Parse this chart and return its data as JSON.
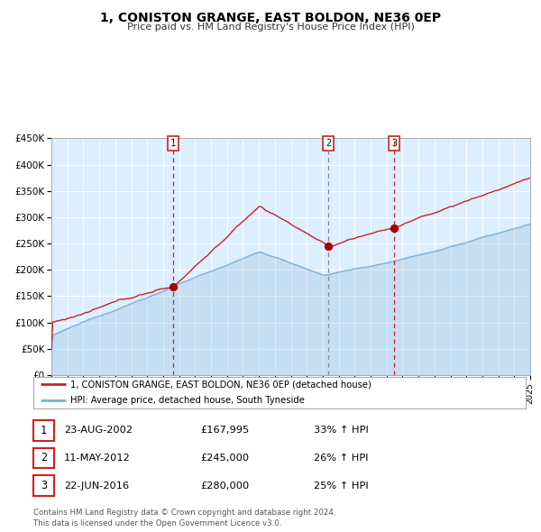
{
  "title": "1, CONISTON GRANGE, EAST BOLDON, NE36 0EP",
  "subtitle": "Price paid vs. HM Land Registry's House Price Index (HPI)",
  "ylim": [
    0,
    450000
  ],
  "yticks": [
    0,
    50000,
    100000,
    150000,
    200000,
    250000,
    300000,
    350000,
    400000,
    450000
  ],
  "ytick_labels": [
    "£0",
    "£50K",
    "£100K",
    "£150K",
    "£200K",
    "£250K",
    "£300K",
    "£350K",
    "£400K",
    "£450K"
  ],
  "year_start": 1995,
  "year_end": 2025,
  "hpi_color": "#7ab0d4",
  "price_color": "#cc2222",
  "bg_color": "#ddeeff",
  "sale1_date": 2002.644,
  "sale1_price": 167995,
  "sale2_date": 2012.36,
  "sale2_price": 245000,
  "sale3_date": 2016.472,
  "sale3_price": 280000,
  "legend_label1": "1, CONISTON GRANGE, EAST BOLDON, NE36 0EP (detached house)",
  "legend_label2": "HPI: Average price, detached house, South Tyneside",
  "transaction1": {
    "num": "1",
    "date": "23-AUG-2002",
    "price": "£167,995",
    "hpi": "33% ↑ HPI"
  },
  "transaction2": {
    "num": "2",
    "date": "11-MAY-2012",
    "price": "£245,000",
    "hpi": "26% ↑ HPI"
  },
  "transaction3": {
    "num": "3",
    "date": "22-JUN-2016",
    "price": "£280,000",
    "hpi": "25% ↑ HPI"
  },
  "footer": "Contains HM Land Registry data © Crown copyright and database right 2024.\nThis data is licensed under the Open Government Licence v3.0."
}
